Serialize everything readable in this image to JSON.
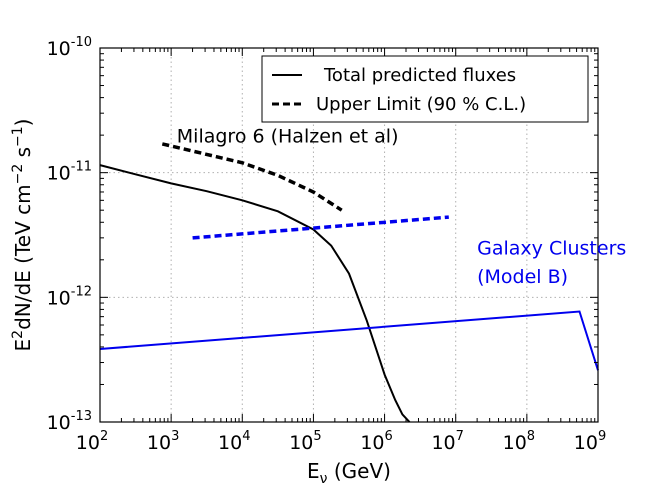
{
  "chart_data": {
    "type": "line",
    "xscale": "log",
    "yscale": "log",
    "xlim": [
      100,
      1000000000
    ],
    "ylim": [
      1e-13,
      1e-10
    ],
    "grid": true,
    "xlabel": {
      "main": "E",
      "sub": "ν",
      "rest": " (GeV)"
    },
    "ylabel": {
      "part1": "E",
      "sup1": "2",
      "part2": "dN/dE (TeV cm",
      "sup2": "−2",
      "part3": " s",
      "sup3": "−1",
      "part4": ")"
    },
    "x_ticks": [
      {
        "value": 100,
        "base": "10",
        "exp": "2"
      },
      {
        "value": 1000,
        "base": "10",
        "exp": "3"
      },
      {
        "value": 10000,
        "base": "10",
        "exp": "4"
      },
      {
        "value": 100000,
        "base": "10",
        "exp": "5"
      },
      {
        "value": 1000000,
        "base": "10",
        "exp": "6"
      },
      {
        "value": 10000000,
        "base": "10",
        "exp": "7"
      },
      {
        "value": 100000000,
        "base": "10",
        "exp": "8"
      },
      {
        "value": 1000000000,
        "base": "10",
        "exp": "9"
      }
    ],
    "y_ticks": [
      {
        "value": 1e-13,
        "base": "10",
        "exp": "-13"
      },
      {
        "value": 1e-12,
        "base": "10",
        "exp": "-12"
      },
      {
        "value": 1e-11,
        "base": "10",
        "exp": "-11"
      },
      {
        "value": 1e-10,
        "base": "10",
        "exp": "-10"
      }
    ],
    "legend": {
      "position": "top-right",
      "entries": [
        {
          "label": "Total predicted fluxes",
          "style": "solid",
          "color": "#000000"
        },
        {
          "label": "Upper Limit (90 % C.L.)",
          "style": "dashed",
          "color": "#000000"
        }
      ]
    },
    "series": [
      {
        "name": "Milagro 6 total predicted flux",
        "style": "solid",
        "color": "#000000",
        "x": [
          100,
          316,
          1000,
          3162,
          10000,
          31623,
          100000,
          177828,
          316228,
          562341,
          1000000,
          1412538,
          1778279,
          2238721
        ],
        "y": [
          1.15e-11,
          9.7e-12,
          8.2e-12,
          7.1e-12,
          6e-12,
          4.9e-12,
          3.5e-12,
          2.6e-12,
          1.55e-12,
          6.5e-13,
          2.4e-13,
          1.5e-13,
          1.15e-13,
          1e-13
        ]
      },
      {
        "name": "Milagro 6 upper limit",
        "style": "dashed",
        "color": "#000000",
        "x": [
          750,
          3162,
          10000,
          31623,
          100000,
          250000
        ],
        "y": [
          1.7e-11,
          1.4e-11,
          1.2e-11,
          9.5e-12,
          7e-12,
          5e-12
        ]
      },
      {
        "name": "Galaxy Clusters upper limit",
        "style": "dashed",
        "color": "#0000ee",
        "x": [
          2000,
          8000000
        ],
        "y": [
          3e-12,
          4.4e-12
        ]
      },
      {
        "name": "Galaxy Clusters (Model B) flux",
        "style": "solid",
        "color": "#0000ee",
        "x": [
          100,
          550000000,
          1000000000
        ],
        "y": [
          3.85e-13,
          7.7e-13,
          2.6e-13
        ]
      }
    ],
    "annotations": [
      {
        "text": "Milagro 6 (Halzen et al)",
        "color": "#000000",
        "x": 1200,
        "y": 1.75e-11
      },
      {
        "text": "Galaxy Clusters",
        "color": "#0000ee",
        "x": 20000000,
        "y": 2.2e-12
      },
      {
        "text": "(Model B)",
        "color": "#0000ee",
        "x": 20000000,
        "y": 1.3e-12
      }
    ]
  }
}
